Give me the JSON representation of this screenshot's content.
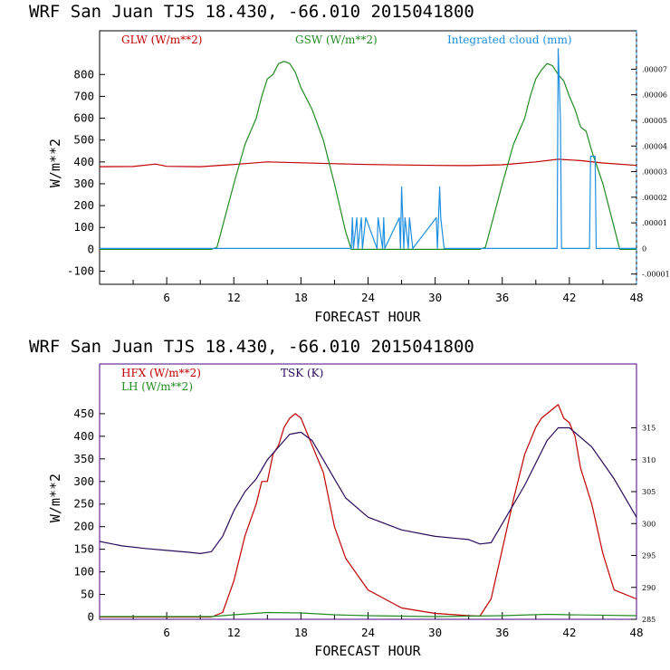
{
  "charts": [
    {
      "title": "WRF  San Juan TJS  18.430, -66.010  2015041800",
      "xlabel": "FORECAST HOUR",
      "ylabel": "W/m**2",
      "xticks": [
        "6",
        "12",
        "18",
        "24",
        "30",
        "36",
        "42",
        "48"
      ],
      "yticks": [
        "-100",
        "0",
        "100",
        "200",
        "300",
        "400",
        "500",
        "600",
        "700",
        "800"
      ],
      "rticks": [
        ".00007",
        ".00006",
        ".00005",
        ".00004",
        ".00003",
        ".00002",
        ".00001",
        "0",
        "-.00001"
      ],
      "legend": [
        {
          "label": "GLW (W/m**2)",
          "color": "#c00000"
        },
        {
          "label": "GSW (W/m**2)",
          "color": "#228b22"
        },
        {
          "label": "Integrated cloud (mm)",
          "color": "#1e8fe0"
        }
      ]
    },
    {
      "title": "WRF  San Juan TJS  18.430, -66.010  2015041800",
      "xlabel": "FORECAST HOUR",
      "ylabel": "W/m**2",
      "xticks": [
        "6",
        "12",
        "18",
        "24",
        "30",
        "36",
        "42",
        "48"
      ],
      "yticks": [
        "0",
        "50",
        "100",
        "150",
        "200",
        "250",
        "300",
        "350",
        "400",
        "450"
      ],
      "rticks": [
        "285",
        "290",
        "295",
        "300",
        "305",
        "310",
        "315"
      ],
      "legend": [
        {
          "label": "HFX (W/m**2)",
          "color": "#c00000"
        },
        {
          "label": "LH  (W/m**2)",
          "color": "#228b22"
        },
        {
          "label": "TSK (K)",
          "color": "#2a0a5a"
        }
      ]
    }
  ],
  "chart_data": [
    {
      "type": "line",
      "title": "WRF  San Juan TJS  18.430, -66.010  2015041800",
      "xlabel": "FORECAST HOUR",
      "ylabel": "W/m**2",
      "xlim": [
        0,
        48
      ],
      "ylim": [
        -160,
        1000
      ],
      "y2lim": [
        -1.4e-05,
        8.5e-05
      ],
      "series": [
        {
          "name": "GLW (W/m**2)",
          "axis": "left",
          "color": "#c00000",
          "x": [
            0,
            3,
            5,
            6,
            9,
            12,
            15,
            18,
            21,
            24,
            27,
            30,
            33,
            36,
            39,
            41,
            43,
            45,
            48
          ],
          "y": [
            378,
            379,
            390,
            380,
            378,
            388,
            400,
            396,
            392,
            388,
            386,
            384,
            383,
            387,
            400,
            412,
            406,
            395,
            384
          ]
        },
        {
          "name": "GSW (W/m**2)",
          "axis": "left",
          "color": "#228b22",
          "x": [
            0,
            10,
            10.5,
            12,
            13,
            14,
            14.5,
            15,
            15.5,
            16,
            16.5,
            17,
            17.5,
            18,
            19,
            20,
            21,
            22,
            22.5,
            34,
            34.5,
            36,
            37,
            38,
            38.5,
            39,
            39.5,
            40,
            40.5,
            41,
            41.5,
            42,
            42.5,
            43,
            43.5,
            44,
            45,
            46,
            46.5,
            48
          ],
          "y": [
            0,
            0,
            10,
            300,
            480,
            600,
            700,
            780,
            800,
            850,
            860,
            850,
            810,
            740,
            640,
            500,
            300,
            80,
            0,
            0,
            10,
            300,
            480,
            600,
            700,
            780,
            820,
            850,
            840,
            800,
            770,
            700,
            640,
            560,
            540,
            450,
            300,
            100,
            0,
            0
          ]
        },
        {
          "name": "Integrated cloud (mm)",
          "axis": "right",
          "color": "#1e8fe0",
          "x": [
            0,
            22.5,
            22.6,
            22.7,
            23,
            23.1,
            23.4,
            23.5,
            23.8,
            24.8,
            24.9,
            25.3,
            25.4,
            25.5,
            26.8,
            26.9,
            27,
            27.2,
            27.3,
            27.6,
            27.7,
            28,
            30.1,
            30.2,
            30.4,
            30.5,
            30.8,
            40.9,
            41,
            41.2,
            41.3,
            43.8,
            43.9,
            44.3,
            44.4,
            48
          ],
          "y": [
            0,
            0,
            1.2e-05,
            0,
            1.2e-05,
            0,
            1.2e-05,
            0,
            1.2e-05,
            0,
            1.2e-05,
            0,
            1.2e-05,
            0,
            1.2e-05,
            0,
            2.4e-05,
            0,
            1.2e-05,
            0,
            1.2e-05,
            0,
            1.2e-05,
            0,
            2.4e-05,
            1.2e-05,
            0,
            0,
            7.8e-05,
            5e-05,
            0,
            0,
            3.6e-05,
            3.6e-05,
            0,
            0
          ]
        }
      ]
    },
    {
      "type": "line",
      "title": "WRF  San Juan TJS  18.430, -66.010  2015041800",
      "xlabel": "FORECAST HOUR",
      "ylabel": "W/m**2",
      "xlim": [
        0,
        48
      ],
      "ylim": [
        -5,
        560
      ],
      "y2lim": [
        285,
        325
      ],
      "series": [
        {
          "name": "HFX (W/m**2)",
          "axis": "left",
          "color": "#c00000",
          "x": [
            0,
            10,
            11,
            12,
            13,
            14,
            14.5,
            15,
            15.5,
            16,
            16.5,
            17,
            17.5,
            18,
            18.5,
            19,
            20,
            21,
            22,
            24,
            27,
            30,
            33,
            34,
            35,
            36,
            37,
            38,
            39,
            39.5,
            40,
            40.5,
            41,
            41.5,
            42,
            42.5,
            43,
            44,
            45,
            46,
            48
          ],
          "y": [
            0,
            0,
            10,
            80,
            180,
            250,
            300,
            300,
            360,
            380,
            420,
            440,
            450,
            440,
            410,
            380,
            320,
            200,
            130,
            60,
            20,
            8,
            3,
            2,
            40,
            150,
            260,
            360,
            420,
            440,
            450,
            460,
            470,
            440,
            430,
            400,
            330,
            250,
            140,
            60,
            40
          ]
        },
        {
          "name": "LH  (W/m**2)",
          "axis": "left",
          "color": "#228b22",
          "x": [
            0,
            10,
            12,
            15,
            18,
            21,
            24,
            30,
            36,
            40,
            42,
            48
          ],
          "y": [
            1,
            1,
            5,
            10,
            9,
            5,
            3,
            1,
            3,
            6,
            5,
            3
          ]
        },
        {
          "name": "TSK (K)",
          "axis": "right",
          "color": "#2a0a5a",
          "x": [
            0,
            2,
            4,
            6,
            8,
            9,
            10,
            11,
            12,
            13,
            14,
            15,
            16,
            17,
            18,
            19,
            20,
            21,
            22,
            24,
            27,
            30,
            33,
            34,
            35,
            36,
            38,
            40,
            41,
            42,
            44,
            46,
            48
          ],
          "y": [
            297.2,
            296.5,
            296.1,
            295.8,
            295.5,
            295.3,
            295.6,
            298,
            302,
            305,
            307,
            310,
            312,
            314,
            314.3,
            313,
            310,
            307,
            304,
            301,
            299,
            298,
            297.5,
            296.8,
            297,
            300,
            306,
            313,
            315,
            315,
            312,
            307,
            301
          ]
        }
      ]
    }
  ]
}
